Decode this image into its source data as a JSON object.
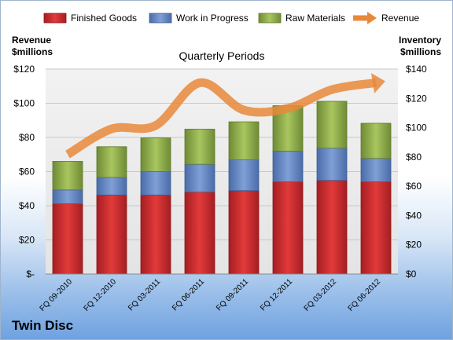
{
  "company": "Twin Disc",
  "chart_data": {
    "type": "bar",
    "stacked": true,
    "title": "Quarterly Periods",
    "categories": [
      "FQ 09-2010",
      "FQ 12-2010",
      "FQ 03-2011",
      "FQ 06-2011",
      "FQ 09-2011",
      "FQ 12-2011",
      "FQ 03-2012",
      "FQ 06-2012"
    ],
    "series": [
      {
        "name": "Finished Goods",
        "axis": "right",
        "color": "#c0272d",
        "values": [
          48,
          54,
          54,
          56,
          57,
          63,
          64,
          63
        ]
      },
      {
        "name": "Work in Progress",
        "axis": "right",
        "color": "#5b7fbf",
        "values": [
          9.5,
          12,
          16,
          19,
          21,
          21,
          22,
          16
        ]
      },
      {
        "name": "Raw Materials",
        "axis": "right",
        "color": "#8fac4a",
        "values": [
          19.5,
          21,
          23,
          24,
          26,
          31,
          32,
          24
        ]
      },
      {
        "name": "Revenue",
        "type": "line",
        "axis": "left",
        "color": "#e8883a",
        "values": [
          70,
          85,
          87,
          112,
          96,
          97,
          108,
          112
        ]
      }
    ],
    "y_left": {
      "label": "Revenue\n$millions",
      "label_lines": [
        "Revenue",
        "$millions"
      ],
      "lim": [
        0,
        120
      ],
      "ticks": [
        "$-",
        "$20",
        "$40",
        "$60",
        "$80",
        "$100",
        "$120"
      ]
    },
    "y_right": {
      "label": "Inventory\n$millions",
      "label_lines": [
        "Inventory",
        "$millions"
      ],
      "lim": [
        0,
        140
      ],
      "ticks": [
        "$0",
        "$20",
        "$40",
        "$60",
        "$80",
        "$100",
        "$120",
        "$140"
      ]
    },
    "grid": true,
    "legend": "top"
  }
}
